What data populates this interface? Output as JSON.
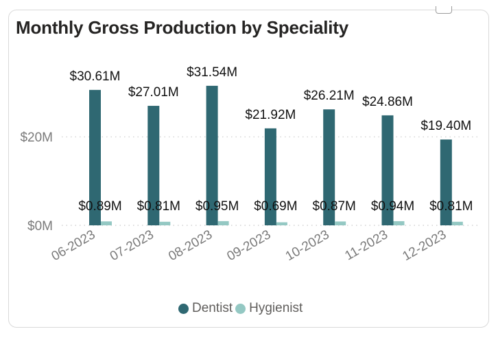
{
  "colors": {
    "dentist": "#2f6872",
    "hygienist": "#94c8c3",
    "axis_text": "#7a7a7a",
    "label_text": "#111111"
  },
  "chart_data": {
    "type": "bar",
    "title": "Monthly Gross Production by Speciality",
    "categories": [
      "06-2023",
      "07-2023",
      "08-2023",
      "09-2023",
      "10-2023",
      "11-2023",
      "12-2023"
    ],
    "series": [
      {
        "name": "Dentist",
        "values": [
          30.61,
          27.01,
          31.54,
          21.92,
          26.21,
          24.86,
          19.4
        ],
        "labels": [
          "$30.61M",
          "$27.01M",
          "$31.54M",
          "$21.92M",
          "$26.21M",
          "$24.86M",
          "$19.40M"
        ]
      },
      {
        "name": "Hygienist",
        "values": [
          0.89,
          0.81,
          0.95,
          0.69,
          0.87,
          0.94,
          0.81
        ],
        "labels": [
          "$0.89M",
          "$0.81M",
          "$0.95M",
          "$0.69M",
          "$0.87M",
          "$0.94M",
          "$0.81M"
        ]
      }
    ],
    "y_ticks": [
      {
        "value": 0,
        "label": "$0M"
      },
      {
        "value": 20,
        "label": "$20M"
      }
    ],
    "ylim": [
      0,
      36
    ],
    "grid": true,
    "legend": "bottom-center"
  }
}
